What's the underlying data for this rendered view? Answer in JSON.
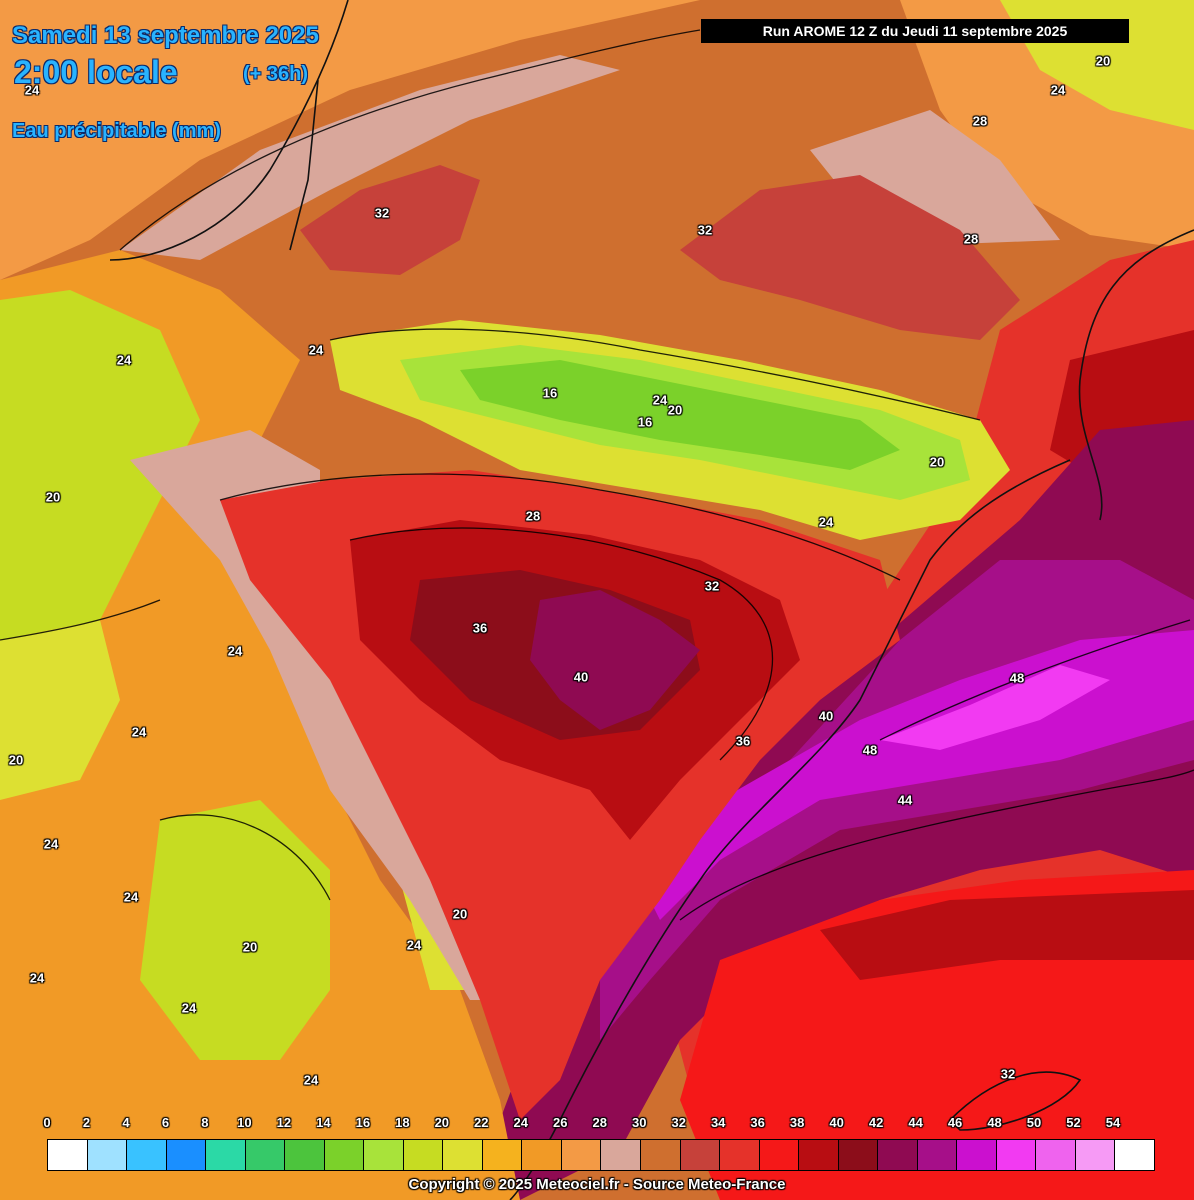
{
  "header": {
    "date": "Samedi 13 septembre 2025",
    "time": "2:00 locale",
    "lead": "(+ 36h)",
    "parameter": "Eau précipitable (mm)",
    "run": "Run AROME 12 Z du Jeudi 11 septembre 2025"
  },
  "map": {
    "colors": {
      "c16": "#7bd12a",
      "c18": "#a8e33a",
      "c20": "#c6dc22",
      "c22": "#dde032",
      "c24": "#f19a26",
      "c26": "#f39a45",
      "c28": "#d9a79b",
      "c30": "#cf6f2f",
      "c32": "#c6413a",
      "c34": "#e5322a",
      "c36": "#f51818",
      "c38": "#b80d12",
      "c40": "#8c0d1a",
      "c42": "#8f0a52",
      "c44": "#a60f89",
      "c46": "#cb10cf",
      "c48": "#f23af2"
    },
    "contour_labels": [
      {
        "text": "24"
      },
      {
        "text": "32"
      },
      {
        "text": "32"
      },
      {
        "text": "28"
      },
      {
        "text": "28"
      },
      {
        "text": "24"
      },
      {
        "text": "20"
      },
      {
        "text": "24"
      },
      {
        "text": "24"
      },
      {
        "text": "16"
      },
      {
        "text": "24"
      },
      {
        "text": "20"
      },
      {
        "text": "16"
      },
      {
        "text": "20"
      },
      {
        "text": "28"
      },
      {
        "text": "24"
      },
      {
        "text": "32"
      },
      {
        "text": "20"
      },
      {
        "text": "36"
      },
      {
        "text": "24"
      },
      {
        "text": "40"
      },
      {
        "text": "40"
      },
      {
        "text": "36"
      },
      {
        "text": "48"
      },
      {
        "text": "48"
      },
      {
        "text": "44"
      },
      {
        "text": "24"
      },
      {
        "text": "20"
      },
      {
        "text": "24"
      },
      {
        "text": "24"
      },
      {
        "text": "20"
      },
      {
        "text": "20"
      },
      {
        "text": "24"
      },
      {
        "text": "24"
      },
      {
        "text": "24"
      },
      {
        "text": "24"
      },
      {
        "text": "32"
      }
    ]
  },
  "legend": {
    "ticks": [
      "0",
      "2",
      "4",
      "6",
      "8",
      "10",
      "12",
      "14",
      "16",
      "18",
      "20",
      "22",
      "24",
      "26",
      "28",
      "30",
      "32",
      "34",
      "36",
      "38",
      "40",
      "42",
      "44",
      "46",
      "48",
      "50",
      "52",
      "54"
    ],
    "colors": [
      "#ffffff",
      "#9fe1ff",
      "#39c2ff",
      "#1a8fff",
      "#2bd9a6",
      "#36c969",
      "#4cc43d",
      "#7bd12a",
      "#a8e33a",
      "#c6dc22",
      "#dde032",
      "#f5b21e",
      "#f19a26",
      "#f39a45",
      "#d9a79b",
      "#cf6f2f",
      "#c6413a",
      "#e5322a",
      "#f51818",
      "#b80d12",
      "#8c0d1a",
      "#8f0a52",
      "#a60f89",
      "#cb10cf",
      "#f23af2",
      "#ef63ee",
      "#f69af5",
      "#ffffff"
    ]
  },
  "footer": {
    "copyright": "Copyright © 2025 Meteociel.fr - Source Meteo-France"
  }
}
